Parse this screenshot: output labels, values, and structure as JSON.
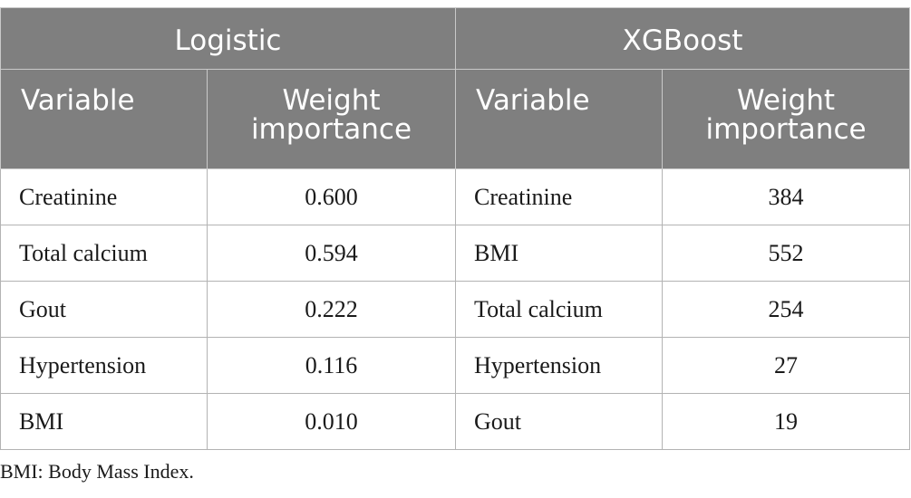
{
  "table": {
    "groups": [
      "Logistic",
      "XGBoost"
    ],
    "subheaders": {
      "variable": "Variable",
      "weight_line1": "Weight",
      "weight_line2": "importance"
    },
    "rows": [
      {
        "log_var": "Creatinine",
        "log_weight": "0.600",
        "xgb_var": "Creatinine",
        "xgb_weight": "384"
      },
      {
        "log_var": "Total calcium",
        "log_weight": "0.594",
        "xgb_var": "BMI",
        "xgb_weight": "552"
      },
      {
        "log_var": "Gout",
        "log_weight": "0.222",
        "xgb_var": "Total calcium",
        "xgb_weight": "254"
      },
      {
        "log_var": "Hypertension",
        "log_weight": "0.116",
        "xgb_var": "Hypertension",
        "xgb_weight": "27"
      },
      {
        "log_var": "BMI",
        "log_weight": "0.010",
        "xgb_var": "Gout",
        "xgb_weight": "19"
      }
    ]
  },
  "footnote": "BMI: Body Mass Index."
}
